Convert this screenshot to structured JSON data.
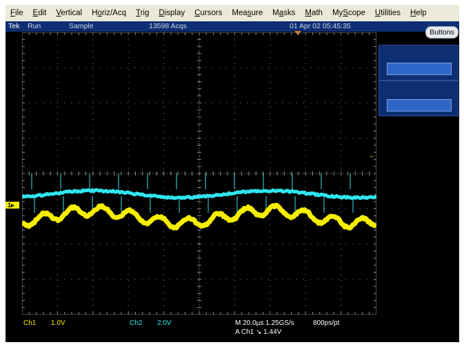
{
  "menu": [
    {
      "label": "File",
      "u": "F",
      "rest": "ile"
    },
    {
      "label": "Edit",
      "u": "E",
      "rest": "dit"
    },
    {
      "label": "Vertical",
      "u": "V",
      "rest": "ertical"
    },
    {
      "label": "Horiz/Acq",
      "pre": "H",
      "u": "o",
      "rest": "riz/Acq"
    },
    {
      "label": "Trig",
      "u": "T",
      "rest": "rig"
    },
    {
      "label": "Display",
      "u": "D",
      "rest": "isplay"
    },
    {
      "label": "Cursors",
      "u": "C",
      "rest": "ursors"
    },
    {
      "label": "Measure",
      "pre": "Mea",
      "u": "s",
      "rest": "ure"
    },
    {
      "label": "Masks",
      "pre": "M",
      "u": "a",
      "rest": "sks"
    },
    {
      "label": "Math",
      "u": "M",
      "rest": "ath"
    },
    {
      "label": "MyScope",
      "pre": "My",
      "u": "S",
      "rest": "cope"
    },
    {
      "label": "Utilities",
      "u": "U",
      "rest": "tilities"
    },
    {
      "label": "Help",
      "u": "H",
      "rest": "elp"
    }
  ],
  "status": {
    "brand": "Tek",
    "run_state": "Run",
    "acq_mode": "Sample",
    "acq_count": "13598 Acqs",
    "datetime": "01 Apr 02 05:45:35"
  },
  "buttons_label": "Buttons",
  "ch1_marker": "1",
  "trig_level_marker": "←",
  "readouts": {
    "ch1_label": "Ch1",
    "ch1_scale": "1.0V",
    "ch2_label": "Ch2",
    "ch2_scale": "2.0V",
    "timebase": "M 20.0µs 1.25GS/s",
    "resolution": "800ps/pt",
    "trigger": "A  Ch1  ↘  1.44V"
  },
  "colors": {
    "ch1": "#f5ee00",
    "ch2": "#2fe6f0",
    "graticule": "#8a8a8a",
    "status_bg": "#0e2e73"
  }
}
